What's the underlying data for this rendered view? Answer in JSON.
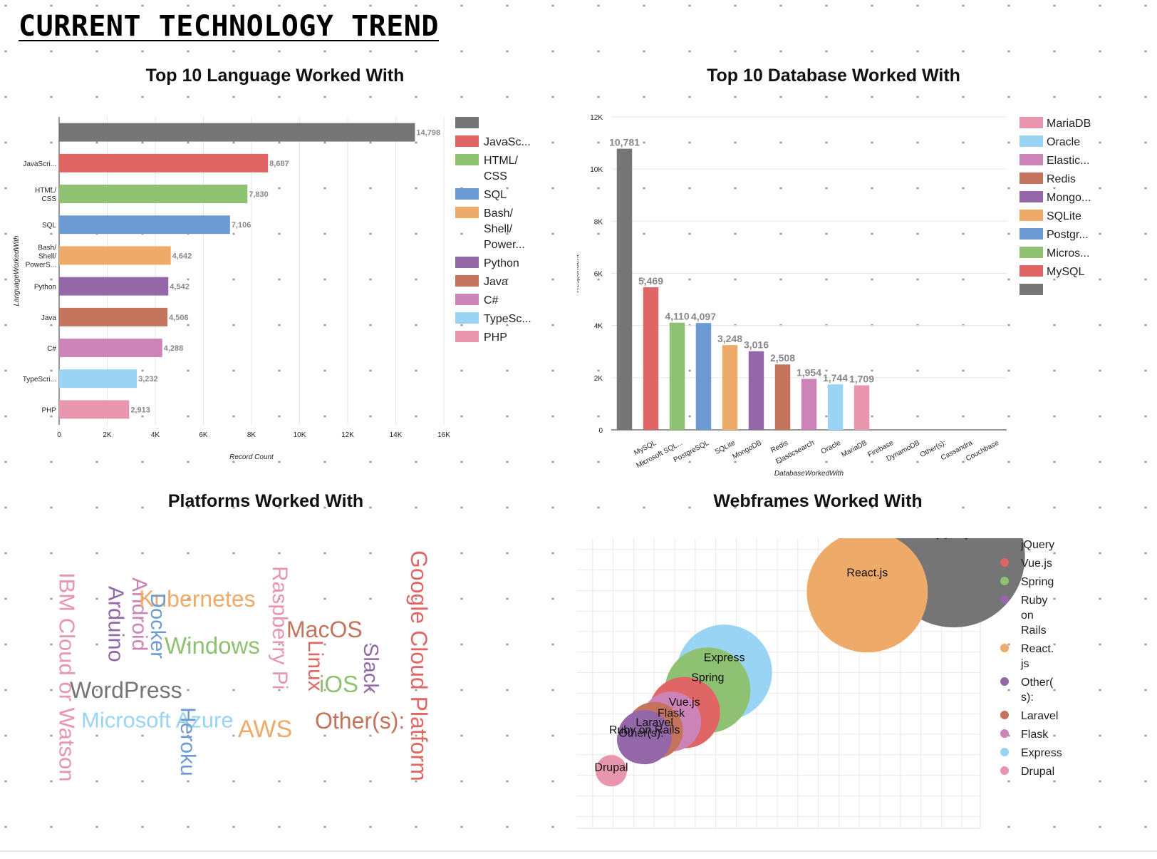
{
  "dashboard_title": "CURRENT TECHNOLOGY TREND",
  "colors": {
    "gray": "#757575",
    "red": "#e06666",
    "green": "#8ec172",
    "blue": "#6d9ad2",
    "orange": "#eeaa68",
    "purple": "#9467a9",
    "brown": "#c4735c",
    "pink": "#cc83b7",
    "lightblue": "#9ad4f5",
    "rose": "#e895ae"
  },
  "chart_data": [
    {
      "type": "bar",
      "orientation": "horizontal",
      "title": "Top 10 Language Worked With",
      "xlabel": "Record Count",
      "ylabel": "LanguageWorkedWith",
      "xlim": [
        0,
        16000
      ],
      "x_ticks": [
        "0",
        "2K",
        "4K",
        "6K",
        "8K",
        "10K",
        "12K",
        "14K",
        "16K"
      ],
      "grid": true,
      "legend_position": "right",
      "categories": [
        "",
        "JavaScri...",
        "HTML/ CSS",
        "SQL",
        "Bash/ Shell/ PowerS...",
        "Python",
        "Java",
        "C#",
        "TypeScri...",
        "PHP"
      ],
      "values": [
        14798,
        8687,
        7830,
        7106,
        4642,
        4542,
        4506,
        4288,
        3232,
        2913
      ],
      "value_labels": [
        "14,798",
        "8,687",
        "7,830",
        "7,106",
        "4,642",
        "4,542",
        "4,506",
        "4,288",
        "3,232",
        "2,913"
      ],
      "bar_colors": [
        "#757575",
        "#e06666",
        "#8ec172",
        "#6d9ad2",
        "#eeaa68",
        "#9467a9",
        "#c4735c",
        "#cc83b7",
        "#9ad4f5",
        "#e895ae"
      ],
      "legend": [
        {
          "label": "",
          "color": "#757575"
        },
        {
          "label": "JavaSc...",
          "color": "#e06666"
        },
        {
          "label": "HTML/ CSS",
          "color": "#8ec172"
        },
        {
          "label": "SQL",
          "color": "#6d9ad2"
        },
        {
          "label": "Bash/ Shell/ Power...",
          "color": "#eeaa68"
        },
        {
          "label": "Python",
          "color": "#9467a9"
        },
        {
          "label": "Java",
          "color": "#c4735c"
        },
        {
          "label": "C#",
          "color": "#cc83b7"
        },
        {
          "label": "TypeSc...",
          "color": "#9ad4f5"
        },
        {
          "label": "PHP",
          "color": "#e895ae"
        }
      ]
    },
    {
      "type": "bar",
      "title": "Top 10 Database Worked With",
      "xlabel": "DatabaseWorkedWith",
      "ylabel": "Respondent",
      "ylim": [
        0,
        12000
      ],
      "y_ticks": [
        "0",
        "2K",
        "4K",
        "6K",
        "8K",
        "10K",
        "12K"
      ],
      "grid": true,
      "legend_position": "right",
      "categories": [
        "",
        "MySQL",
        "Microsoft SQL...",
        "PostgreSQL",
        "SQLite",
        "MongoDB",
        "Redis",
        "Elasticsearch",
        "Oracle",
        "MariaDB",
        "Firebase",
        "DynamoDB",
        "Other(s):",
        "Cassandra",
        "Couchbase"
      ],
      "values": [
        10781,
        5469,
        4110,
        4097,
        3248,
        3016,
        2508,
        1954,
        1744,
        1709,
        null,
        null,
        null,
        null,
        null
      ],
      "value_labels": [
        "10,781",
        "5,469",
        "4,110",
        "4,097",
        "3,248",
        "3,016",
        "2,508",
        "1,954",
        "1,744",
        "1,709",
        "",
        "",
        "",
        "",
        ""
      ],
      "bar_colors": [
        "#757575",
        "#e06666",
        "#8ec172",
        "#6d9ad2",
        "#eeaa68",
        "#9467a9",
        "#c4735c",
        "#cc83b7",
        "#9ad4f5",
        "#e895ae"
      ],
      "legend": [
        {
          "label": "MariaDB",
          "color": "#e895ae"
        },
        {
          "label": "Oracle",
          "color": "#9ad4f5"
        },
        {
          "label": "Elastic...",
          "color": "#cc83b7"
        },
        {
          "label": "Redis",
          "color": "#c4735c"
        },
        {
          "label": "Mongo...",
          "color": "#9467a9"
        },
        {
          "label": "SQLite",
          "color": "#eeaa68"
        },
        {
          "label": "Postgr...",
          "color": "#6d9ad2"
        },
        {
          "label": "Micros...",
          "color": "#8ec172"
        },
        {
          "label": "MySQL",
          "color": "#e06666"
        },
        {
          "label": "",
          "color": "#757575"
        }
      ]
    },
    {
      "type": "wordcloud",
      "title": "Platforms Worked With",
      "words": [
        {
          "text": "IBM Cloud or Watson",
          "color": "#e895ae",
          "rotated": true
        },
        {
          "text": "Arduino",
          "color": "#9467a9",
          "rotated": true
        },
        {
          "text": "Android",
          "color": "#cc83b7",
          "rotated": true
        },
        {
          "text": "Kubernetes",
          "color": "#eeaa68",
          "rotated": false
        },
        {
          "text": "Docker",
          "color": "#6d9ad2",
          "rotated": true
        },
        {
          "text": "Windows",
          "color": "#8ec172",
          "rotated": false
        },
        {
          "text": "WordPress",
          "color": "#757575",
          "rotated": false
        },
        {
          "text": "Microsoft Azure",
          "color": "#9ad4f5",
          "rotated": false
        },
        {
          "text": "Heroku",
          "color": "#6d9ad2",
          "rotated": true
        },
        {
          "text": "AWS",
          "color": "#eeaa68",
          "rotated": false
        },
        {
          "text": "Raspberry Pi",
          "color": "#e895ae",
          "rotated": true
        },
        {
          "text": "MacOS",
          "color": "#c4735c",
          "rotated": false
        },
        {
          "text": "Linux",
          "color": "#e06666",
          "rotated": true
        },
        {
          "text": "iOS",
          "color": "#8ec172",
          "rotated": false
        },
        {
          "text": "Slack",
          "color": "#9467a9",
          "rotated": true
        },
        {
          "text": "Other(s):",
          "color": "#c4735c",
          "rotated": false
        },
        {
          "text": "Google Cloud Platform",
          "color": "#e06666",
          "rotated": true
        }
      ]
    },
    {
      "type": "scatter",
      "title": "Webframes Worked With",
      "grid": true,
      "legend_position": "right",
      "points": [
        {
          "label": "jQuery",
          "color": "#757575",
          "x": 10.9,
          "y": 10.2,
          "size": 100
        },
        {
          "label": "React.js",
          "color": "#eeaa68",
          "x": 8.3,
          "y": 8.6,
          "size": 85
        },
        {
          "label": "Express",
          "color": "#9ad4f5",
          "x": 4,
          "y": 5,
          "size": 67
        },
        {
          "label": "Spring",
          "color": "#8ec172",
          "x": 3.5,
          "y": 4.2,
          "size": 60
        },
        {
          "label": "Vue.js",
          "color": "#e06666",
          "x": 2.8,
          "y": 3.2,
          "size": 50
        },
        {
          "label": "Flask",
          "color": "#cc83b7",
          "x": 2.4,
          "y": 2.8,
          "size": 42
        },
        {
          "label": "Laravel",
          "color": "#c4735c",
          "x": 1.9,
          "y": 2.4,
          "size": 40
        },
        {
          "label": "Ruby on Rails",
          "color": "#9467a9",
          "x": 1.6,
          "y": 2.1,
          "size": 38
        },
        {
          "label": "Other(s):",
          "color": "#9467a9",
          "x": 1.5,
          "y": 2.0,
          "size": 34
        },
        {
          "label": "Drupal",
          "color": "#e895ae",
          "x": 0.6,
          "y": 0.6,
          "size": 22
        }
      ],
      "legend": [
        {
          "label": "jQuery",
          "color": "#757575"
        },
        {
          "label": "Vue.js",
          "color": "#e06666"
        },
        {
          "label": "Spring",
          "color": "#8ec172"
        },
        {
          "label": "Ruby on Rails",
          "color": "#9467a9"
        },
        {
          "label": "React. js",
          "color": "#eeaa68"
        },
        {
          "label": "Other( s):",
          "color": "#9467a9"
        },
        {
          "label": "Laravel",
          "color": "#c4735c"
        },
        {
          "label": "Flask",
          "color": "#cc83b7"
        },
        {
          "label": "Express",
          "color": "#9ad4f5"
        },
        {
          "label": "Drupal",
          "color": "#e895ae"
        }
      ]
    }
  ]
}
